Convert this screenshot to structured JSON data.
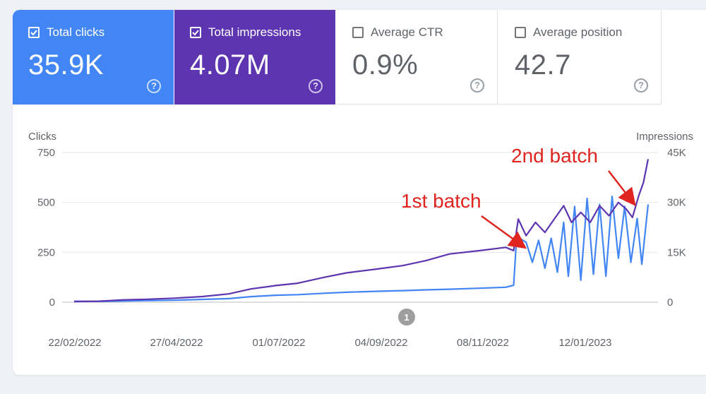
{
  "metrics": [
    {
      "label": "Total clicks",
      "value": "35.9K",
      "checked": true,
      "color": "#4285f4"
    },
    {
      "label": "Total impressions",
      "value": "4.07M",
      "checked": true,
      "color": "#5e35b1"
    },
    {
      "label": "Average CTR",
      "value": "0.9%",
      "checked": false
    },
    {
      "label": "Average position",
      "value": "42.7",
      "checked": false
    }
  ],
  "help_glyph": "?",
  "annotation_marker": "1",
  "annotations": [
    {
      "text": "1st batch",
      "color": "#e0241f",
      "date": "2022-11-30"
    },
    {
      "text": "2nd batch",
      "color": "#e0241f",
      "date": "2023-02-17"
    }
  ],
  "chart_data": {
    "type": "line",
    "left_axis_title": "Clicks",
    "right_axis_title": "Impressions",
    "left_ticks": [
      "750",
      "500",
      "250",
      "0"
    ],
    "right_ticks": [
      "45K",
      "30K",
      "15K",
      "0"
    ],
    "left_range": [
      0,
      750
    ],
    "right_range": [
      0,
      45000
    ],
    "x_tick_labels": [
      "22/02/2022",
      "27/04/2022",
      "01/07/2022",
      "04/09/2022",
      "08/11/2022",
      "12/01/2023"
    ],
    "x_range": [
      "2022-02-22",
      "2023-02-24"
    ],
    "grid": true,
    "series": [
      {
        "name": "Clicks",
        "axis": "left",
        "color": "#4285f4",
        "points": [
          [
            "2022-02-22",
            5
          ],
          [
            "2022-03-10",
            4
          ],
          [
            "2022-03-25",
            6
          ],
          [
            "2022-04-10",
            8
          ],
          [
            "2022-04-27",
            10
          ],
          [
            "2022-05-15",
            14
          ],
          [
            "2022-06-01",
            18
          ],
          [
            "2022-06-15",
            28
          ],
          [
            "2022-07-01",
            35
          ],
          [
            "2022-07-15",
            38
          ],
          [
            "2022-08-01",
            45
          ],
          [
            "2022-08-15",
            50
          ],
          [
            "2022-09-04",
            55
          ],
          [
            "2022-09-20",
            58
          ],
          [
            "2022-10-05",
            62
          ],
          [
            "2022-10-20",
            65
          ],
          [
            "2022-11-08",
            70
          ],
          [
            "2022-11-25",
            75
          ],
          [
            "2022-11-30",
            85
          ],
          [
            "2022-12-02",
            330
          ],
          [
            "2022-12-08",
            300
          ],
          [
            "2022-12-12",
            200
          ],
          [
            "2022-12-16",
            310
          ],
          [
            "2022-12-20",
            170
          ],
          [
            "2022-12-24",
            320
          ],
          [
            "2022-12-28",
            150
          ],
          [
            "2023-01-01",
            400
          ],
          [
            "2023-01-04",
            130
          ],
          [
            "2023-01-08",
            480
          ],
          [
            "2023-01-12",
            110
          ],
          [
            "2023-01-16",
            520
          ],
          [
            "2023-01-20",
            140
          ],
          [
            "2023-01-24",
            490
          ],
          [
            "2023-01-28",
            130
          ],
          [
            "2023-02-01",
            530
          ],
          [
            "2023-02-05",
            220
          ],
          [
            "2023-02-09",
            480
          ],
          [
            "2023-02-13",
            200
          ],
          [
            "2023-02-17",
            420
          ],
          [
            "2023-02-20",
            190
          ],
          [
            "2023-02-24",
            490
          ]
        ]
      },
      {
        "name": "Impressions",
        "axis": "right",
        "color": "#5e35b1",
        "points": [
          [
            "2022-02-22",
            200
          ],
          [
            "2022-03-10",
            300
          ],
          [
            "2022-03-25",
            700
          ],
          [
            "2022-04-10",
            900
          ],
          [
            "2022-04-27",
            1200
          ],
          [
            "2022-05-15",
            1700
          ],
          [
            "2022-06-01",
            2500
          ],
          [
            "2022-06-15",
            4000
          ],
          [
            "2022-07-01",
            5000
          ],
          [
            "2022-07-15",
            5700
          ],
          [
            "2022-08-01",
            7500
          ],
          [
            "2022-08-15",
            8800
          ],
          [
            "2022-09-04",
            10000
          ],
          [
            "2022-09-20",
            11000
          ],
          [
            "2022-10-05",
            12500
          ],
          [
            "2022-10-20",
            14500
          ],
          [
            "2022-11-08",
            15500
          ],
          [
            "2022-11-25",
            16500
          ],
          [
            "2022-11-30",
            15500
          ],
          [
            "2022-12-03",
            25000
          ],
          [
            "2022-12-08",
            20000
          ],
          [
            "2022-12-14",
            24000
          ],
          [
            "2022-12-20",
            21000
          ],
          [
            "2022-12-26",
            25000
          ],
          [
            "2023-01-01",
            29000
          ],
          [
            "2023-01-06",
            24000
          ],
          [
            "2023-01-12",
            27000
          ],
          [
            "2023-01-18",
            24000
          ],
          [
            "2023-01-24",
            29000
          ],
          [
            "2023-01-30",
            26000
          ],
          [
            "2023-02-05",
            30000
          ],
          [
            "2023-02-10",
            28000
          ],
          [
            "2023-02-14",
            25500
          ],
          [
            "2023-02-18",
            32000
          ],
          [
            "2023-02-21",
            36000
          ],
          [
            "2023-02-24",
            43000
          ]
        ]
      }
    ]
  }
}
